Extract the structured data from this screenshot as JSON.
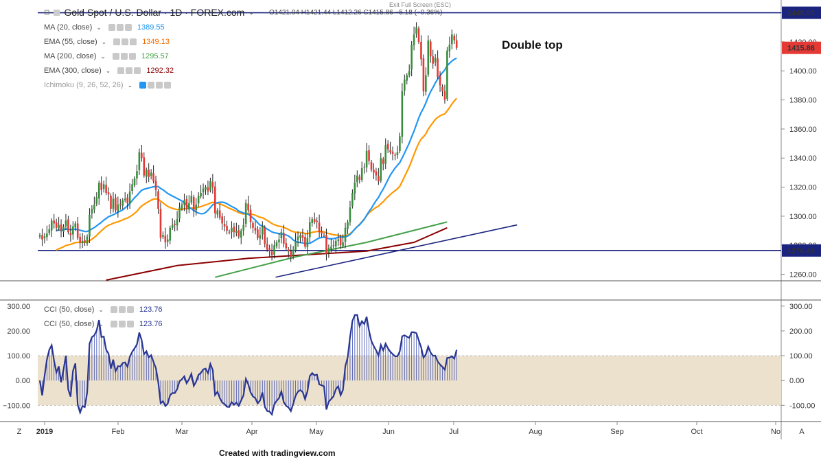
{
  "header": {
    "symbol": "Gold Spot / U.S. Dollar · 1D · FOREX.com",
    "ohlc": "O1421.04  H1421.44  L1412.26  C1415.86  −5.18 (−0.36%)",
    "exit_fullscreen": "Exit Full Screen (ESC)"
  },
  "indicators": [
    {
      "label": "MA (20, close)",
      "value": "1389.55",
      "color": "#2196f3"
    },
    {
      "label": "EMA (55, close)",
      "value": "1349.13",
      "color": "#ff9800"
    },
    {
      "label": "MA (200, close)",
      "value": "1295.57",
      "color": "#43a047"
    },
    {
      "label": "EMA (300, close)",
      "value": "1292.32",
      "color": "#8b0000"
    },
    {
      "label": "Ichimoku (9, 26, 52, 26)",
      "value": "",
      "color": "#999999"
    }
  ],
  "cci_legend": [
    {
      "label": "CCI (50, close)",
      "value": "123.76",
      "color": "#283593"
    },
    {
      "label": "CCI (50, close)",
      "value": "123.76",
      "color": "#283593"
    }
  ],
  "annotation": "Double top",
  "footer": "Created with tradingview.com",
  "chart_data": [
    {
      "type": "candlestick",
      "title": "Gold Spot / U.S. Dollar · 1D · FOREX.com",
      "x_labels": [
        "2019",
        "Feb",
        "Mar",
        "Apr",
        "May",
        "Jun",
        "Jul",
        "Aug",
        "Sep",
        "Oct",
        "No"
      ],
      "y_ticks": [
        1260,
        1280,
        1300,
        1320,
        1340,
        1360,
        1380,
        1400,
        1420,
        1440
      ],
      "ylim": [
        1256,
        1445
      ],
      "price_labels": [
        {
          "value": 1440.0,
          "text": "1440.00",
          "color": "#1a237e"
        },
        {
          "value": 1415.86,
          "text": "1415.86",
          "color": "#e53935"
        },
        {
          "value": 1276.41,
          "text": "1276.41",
          "color": "#1a237e"
        }
      ],
      "horizontal_lines": [
        1440.0,
        1276.41
      ],
      "trendline": {
        "color": "#1a237e",
        "points": [
          [
            1,
            1258
          ],
          [
            74,
            1294
          ]
        ]
      },
      "closes": [
        1287,
        1284,
        1286,
        1288,
        1291,
        1297,
        1295,
        1292,
        1294,
        1290,
        1293,
        1297,
        1289,
        1287,
        1293,
        1295,
        1285,
        1282,
        1283,
        1282,
        1286,
        1301,
        1305,
        1308,
        1313,
        1323,
        1318,
        1322,
        1316,
        1315,
        1305,
        1312,
        1304,
        1308,
        1308,
        1311,
        1312,
        1309,
        1317,
        1322,
        1326,
        1331,
        1344,
        1340,
        1328,
        1332,
        1327,
        1330,
        1324,
        1318,
        1305,
        1285,
        1287,
        1282,
        1284,
        1292,
        1294,
        1294,
        1298,
        1306,
        1308,
        1311,
        1305,
        1309,
        1314,
        1304,
        1308,
        1314,
        1316,
        1319,
        1320,
        1317,
        1324,
        1320,
        1302,
        1304,
        1299,
        1295,
        1293,
        1290,
        1289,
        1292,
        1289,
        1290,
        1286,
        1290,
        1294,
        1309,
        1304,
        1296,
        1292,
        1290,
        1285,
        1287,
        1293,
        1281,
        1277,
        1276,
        1273,
        1280,
        1282,
        1284,
        1289,
        1281,
        1278,
        1276,
        1272,
        1277,
        1283,
        1286,
        1287,
        1285,
        1279,
        1285,
        1296,
        1298,
        1296,
        1296,
        1289,
        1288,
        1287,
        1274,
        1278,
        1279,
        1280,
        1283,
        1284,
        1280,
        1282,
        1292,
        1296,
        1306,
        1316,
        1323,
        1328,
        1325,
        1333,
        1334,
        1345,
        1338,
        1332,
        1330,
        1328,
        1324,
        1340,
        1336,
        1349,
        1346,
        1344,
        1343,
        1342,
        1344,
        1355,
        1386,
        1394,
        1397,
        1400,
        1418,
        1425,
        1430,
        1420,
        1408,
        1386,
        1397,
        1421,
        1410,
        1405,
        1409,
        1396,
        1390,
        1386,
        1380,
        1414,
        1418,
        1425,
        1421,
        1415.86
      ],
      "series": [
        {
          "name": "MA (20, close)",
          "color": "#2196f3",
          "last": 1389.55,
          "start_index": 7
        },
        {
          "name": "EMA (55, close)",
          "color": "#ff9800",
          "last": 1349.13,
          "start_index": 7
        },
        {
          "name": "MA (200, close)",
          "color": "#43a047",
          "last": 1295.57,
          "start_index": 74,
          "line": [
            [
              74,
              1258
            ],
            [
              108,
              1272
            ],
            [
              138,
              1282
            ],
            [
              172,
              1296
            ]
          ]
        },
        {
          "name": "EMA (300, close)",
          "color": "#8b0000",
          "last": 1292.32,
          "start_index": 28,
          "line": [
            [
              28,
              1256
            ],
            [
              58,
              1266
            ],
            [
              88,
              1271
            ],
            [
              118,
              1274
            ],
            [
              138,
              1276
            ],
            [
              158,
              1282
            ],
            [
              172,
              1292
            ]
          ]
        }
      ]
    },
    {
      "type": "line",
      "title": "CCI (50, close)",
      "y_ticks": [
        -100,
        0,
        100,
        200,
        300
      ],
      "ylim": [
        -160,
        330
      ],
      "band": [
        -100,
        100
      ],
      "last": 123.76,
      "note": "CCI values approximated from chart shape"
    }
  ]
}
